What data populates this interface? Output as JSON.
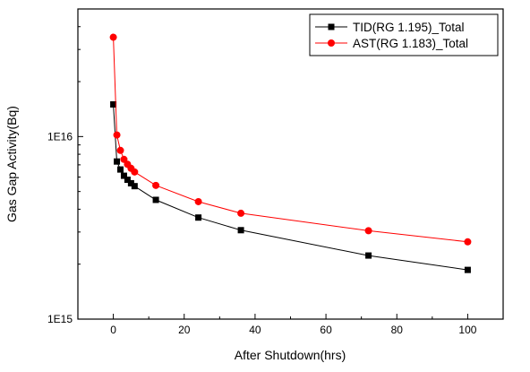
{
  "chart_data": {
    "type": "line",
    "title": "",
    "xlabel": "After Shutdown(hrs)",
    "ylabel": "Gas Gap Activity(Bq)",
    "x_scale": "linear",
    "y_scale": "log",
    "xlim": [
      -10,
      110
    ],
    "ylim": [
      1000000000000000.0,
      5e+16
    ],
    "x_ticks": [
      0,
      20,
      40,
      60,
      80,
      100
    ],
    "x_tick_labels": [
      "0",
      "20",
      "40",
      "60",
      "80",
      "100"
    ],
    "y_ticks": [
      1000000000000000.0,
      1e+16
    ],
    "y_tick_labels": [
      "1E15",
      "1E16"
    ],
    "grid": false,
    "legend_position": "top-right",
    "series": [
      {
        "name": "TID(RG 1.195)_Total",
        "color": "#000000",
        "marker": "square",
        "x": [
          0,
          1,
          2,
          3,
          4,
          5,
          6,
          12,
          24,
          36,
          72,
          100
        ],
        "y": [
          1.5e+16,
          7300000000000000.0,
          6600000000000000.0,
          6100000000000000.0,
          5800000000000000.0,
          5550000000000000.0,
          5350000000000000.0,
          4500000000000000.0,
          3600000000000000.0,
          3070000000000000.0,
          2230000000000000.0,
          1860000000000000.0
        ]
      },
      {
        "name": "AST(RG 1.183)_Total",
        "color": "#ff0000",
        "marker": "circle",
        "x": [
          0,
          1,
          2,
          3,
          4,
          5,
          6,
          12,
          24,
          36,
          72,
          100
        ],
        "y": [
          3.5e+16,
          1.02e+16,
          8400000000000000.0,
          7500000000000000.0,
          7050000000000000.0,
          6700000000000000.0,
          6400000000000000.0,
          5400000000000000.0,
          4400000000000000.0,
          3800000000000000.0,
          3050000000000000.0,
          2650000000000000.0
        ]
      }
    ]
  }
}
